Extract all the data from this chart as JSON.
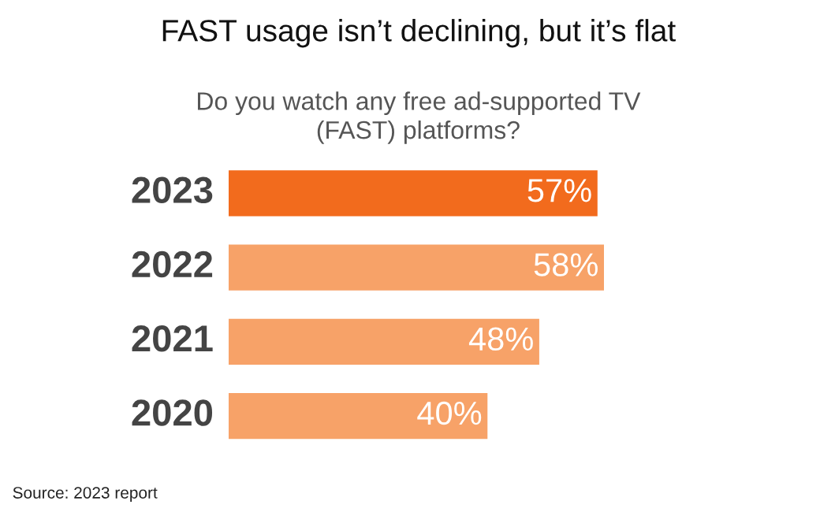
{
  "chart_data": {
    "type": "bar",
    "orientation": "horizontal",
    "title": "FAST usage isn’t declining, but it’s flat",
    "subtitle": "Do you watch any free ad-supported TV\n(FAST) platforms?",
    "categories": [
      "2023",
      "2022",
      "2021",
      "2020"
    ],
    "values": [
      57,
      58,
      48,
      40
    ],
    "colors": [
      "#f26b1d",
      "#f7a268",
      "#f7a268",
      "#f7a268"
    ],
    "value_labels": [
      "57%",
      "58%",
      "48%",
      "40%"
    ],
    "annotations": [
      "Source: 2023 report"
    ]
  }
}
